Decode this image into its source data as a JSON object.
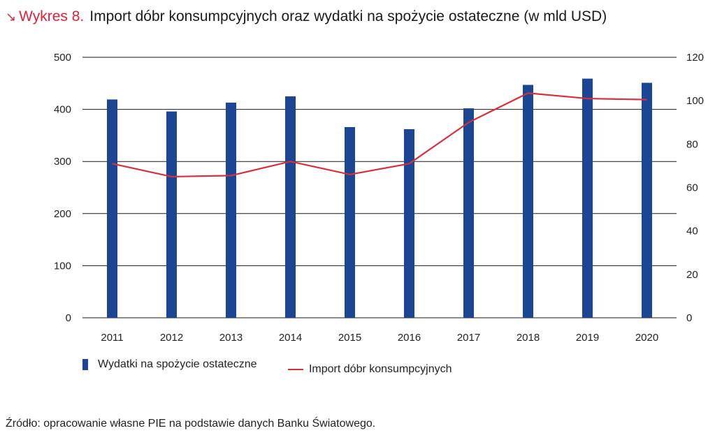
{
  "header": {
    "arrow_glyph": "↘",
    "label": "Wykres 8.",
    "title": "Import dóbr konsumpcyjnych oraz wydatki na spożycie ostateczne (w mld USD)"
  },
  "colors": {
    "bar": "#1a4693",
    "line": "#d6303f",
    "accent": "#e0213a"
  },
  "chart_data": {
    "type": "bar",
    "categories": [
      "2011",
      "2012",
      "2013",
      "2014",
      "2015",
      "2016",
      "2017",
      "2018",
      "2019",
      "2020"
    ],
    "series": [
      {
        "name": "Wydatki na spożycie ostateczne",
        "type": "bar",
        "axis": "left",
        "values": [
          419,
          396,
          413,
          425,
          366,
          362,
          402,
          447,
          459,
          451
        ]
      },
      {
        "name": "Import dóbr konsumpcyjnych",
        "type": "line",
        "axis": "right",
        "values": [
          71,
          65,
          65.5,
          72,
          66,
          71,
          90,
          103.5,
          101,
          100.5
        ]
      }
    ],
    "ylim_left": [
      0,
      500
    ],
    "yticks_left": [
      "0",
      "100",
      "200",
      "300",
      "400",
      "500"
    ],
    "ylim_right": [
      0,
      120
    ],
    "yticks_right": [
      "0",
      "20",
      "40",
      "60",
      "80",
      "100",
      "120"
    ],
    "grid": true,
    "legend_position": "bottom-left"
  },
  "legend": {
    "bar_label": "Wydatki na spożycie ostateczne",
    "line_label": "Import dóbr konsumpcyjnych"
  },
  "source": "Źródło: opracowanie własne PIE na podstawie danych Banku Światowego."
}
